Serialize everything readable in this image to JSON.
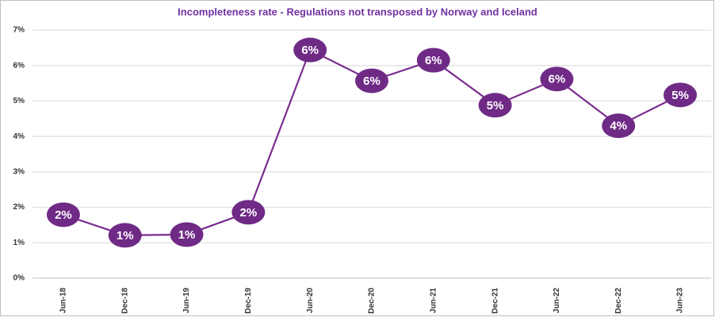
{
  "chart_data": {
    "type": "line",
    "title": "Incompleteness rate - Regulations not transposed by Norway and Iceland",
    "categories": [
      "Jun-18",
      "Dec-18",
      "Jun-19",
      "Dec-19",
      "Jun-20",
      "Dec-20",
      "Jun-21",
      "Dec-21",
      "Jun-22",
      "Dec-22",
      "Jun-23"
    ],
    "series": [
      {
        "name": "Incompleteness rate",
        "color": "#7b2c8f",
        "values": [
          1.79,
          1.21,
          1.23,
          1.86,
          6.44,
          5.57,
          6.15,
          4.88,
          5.62,
          4.3,
          5.17
        ],
        "value_labels": [
          "2%",
          "1%",
          "1%",
          "2%",
          "6%",
          "6%",
          "6%",
          "5%",
          "6%",
          "4%",
          "5%"
        ]
      }
    ],
    "ylim": [
      0,
      7
    ],
    "yticks": [
      {
        "value": 0,
        "label": "0%"
      },
      {
        "value": 1,
        "label": "1%"
      },
      {
        "value": 2,
        "label": "2%"
      },
      {
        "value": 3,
        "label": "3%"
      },
      {
        "value": 4,
        "label": "4%"
      },
      {
        "value": 5,
        "label": "5%"
      },
      {
        "value": 6,
        "label": "6%"
      },
      {
        "value": 7,
        "label": "7%"
      }
    ],
    "grid": true
  }
}
